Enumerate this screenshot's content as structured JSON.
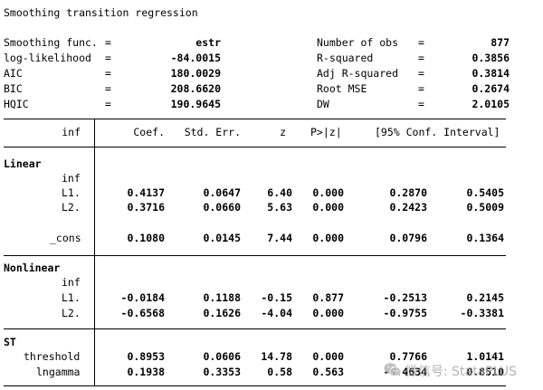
{
  "title": "Smoothing transition regression",
  "summary_left": [
    {
      "label": "Smoothing func.",
      "eq": "=",
      "value": "estr"
    },
    {
      "label": "log-likelihood",
      "eq": "=",
      "value": "-84.0015"
    },
    {
      "label": "AIC",
      "eq": "=",
      "value": "180.0029"
    },
    {
      "label": "BIC",
      "eq": "=",
      "value": "208.6620"
    },
    {
      "label": "HQIC",
      "eq": "=",
      "value": "190.9645"
    }
  ],
  "summary_right": [
    {
      "label": "Number of obs",
      "eq": "=",
      "value": "877"
    },
    {
      "label": "R-squared",
      "eq": "=",
      "value": "0.3856"
    },
    {
      "label": "Adj R-squared",
      "eq": "=",
      "value": "0.3814"
    },
    {
      "label": "Root MSE",
      "eq": "=",
      "value": "0.2674"
    },
    {
      "label": "DW",
      "eq": "=",
      "value": "2.0105"
    }
  ],
  "table": {
    "depvar": "inf",
    "headers": {
      "coef": "Coef.",
      "se": "Std. Err.",
      "z": "z",
      "p": "P>|z|",
      "ci": "[95% Conf. Interval]"
    },
    "rows": [
      {
        "label": "Linear",
        "indent": 0,
        "section": true
      },
      {
        "label": "inf",
        "indent": 2
      },
      {
        "label": "L1.",
        "indent": 3,
        "coef": "0.4137",
        "se": "0.0647",
        "z": "6.40",
        "p": "0.000",
        "lo": "0.2870",
        "hi": "0.5405"
      },
      {
        "label": "L2.",
        "indent": 3,
        "coef": "0.3716",
        "se": "0.0660",
        "z": "5.63",
        "p": "0.000",
        "lo": "0.2423",
        "hi": "0.5009"
      },
      {
        "label": "",
        "indent": 0,
        "blank": true
      },
      {
        "label": "_cons",
        "indent": 2,
        "coef": "0.1080",
        "se": "0.0145",
        "z": "7.44",
        "p": "0.000",
        "lo": "0.0796",
        "hi": "0.1364"
      },
      {
        "label": "Nonlinear",
        "indent": 0,
        "section": true
      },
      {
        "label": "inf",
        "indent": 2
      },
      {
        "label": "L1.",
        "indent": 3,
        "coef": "-0.0184",
        "se": "0.1188",
        "z": "-0.15",
        "p": "0.877",
        "lo": "-0.2513",
        "hi": "0.2145"
      },
      {
        "label": "L2.",
        "indent": 3,
        "coef": "-0.6568",
        "se": "0.1626",
        "z": "-4.04",
        "p": "0.000",
        "lo": "-0.9755",
        "hi": "-0.3381"
      },
      {
        "label": "ST",
        "indent": 0,
        "section": true
      },
      {
        "label": "threshold",
        "indent": 1,
        "coef": "0.8953",
        "se": "0.0606",
        "z": "14.78",
        "p": "0.000",
        "lo": "0.7766",
        "hi": "1.0141"
      },
      {
        "label": "lngamma",
        "indent": 1,
        "coef": "0.1938",
        "se": "0.3353",
        "z": "0.58",
        "p": "0.563",
        "lo": "-0.4634",
        "hi": "0.8510"
      }
    ]
  },
  "watermark": {
    "text": "微信号: StataPLUS",
    "icon": "wechat-icon"
  }
}
